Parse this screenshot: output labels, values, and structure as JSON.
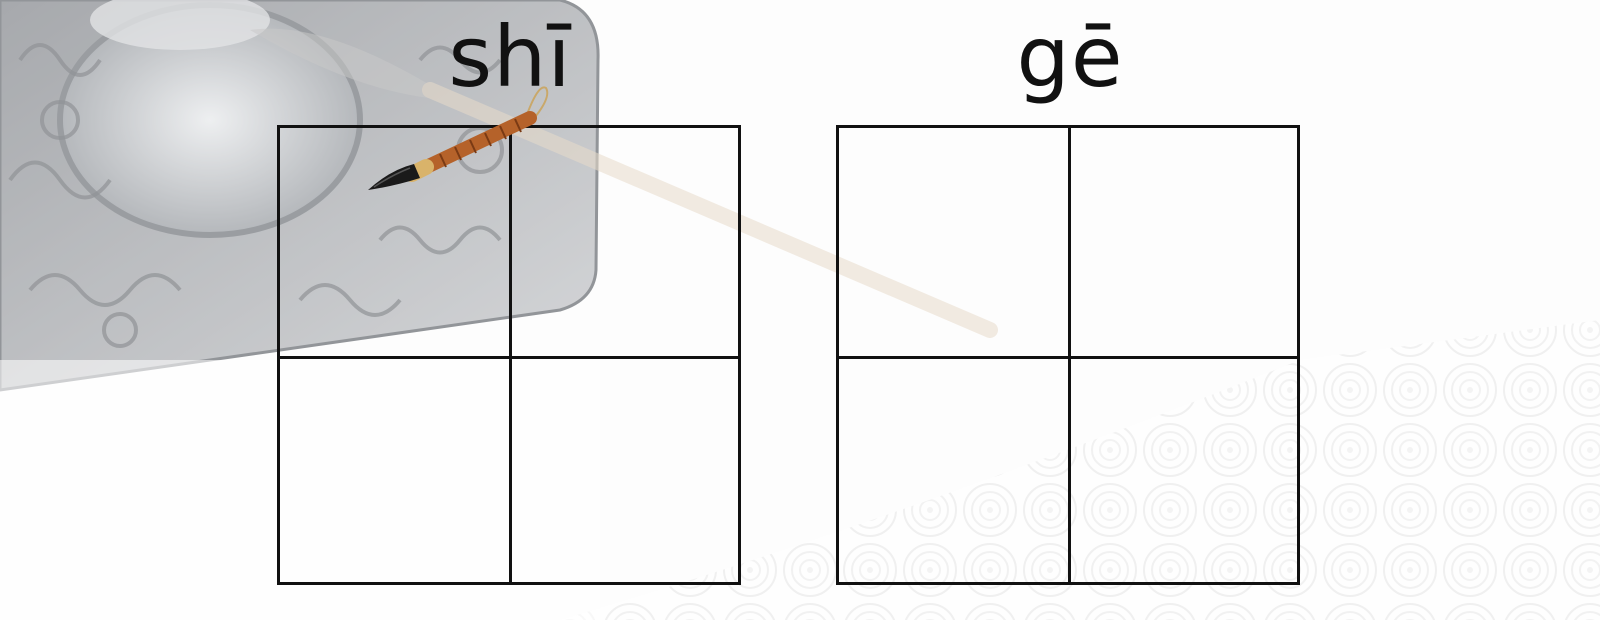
{
  "worksheet": {
    "characters": [
      {
        "pinyin": "shī"
      },
      {
        "pinyin": "gē"
      }
    ]
  },
  "decorations": {
    "background_icon": "ink-stone-and-brush-illustration",
    "brush_icon": "calligraphy-brush-icon",
    "pattern_icon": "swirl-cloud-pattern"
  },
  "colors": {
    "grid_line": "#111111",
    "brush_handle": "#b5622a",
    "brush_tip": "#1a1a1a"
  }
}
